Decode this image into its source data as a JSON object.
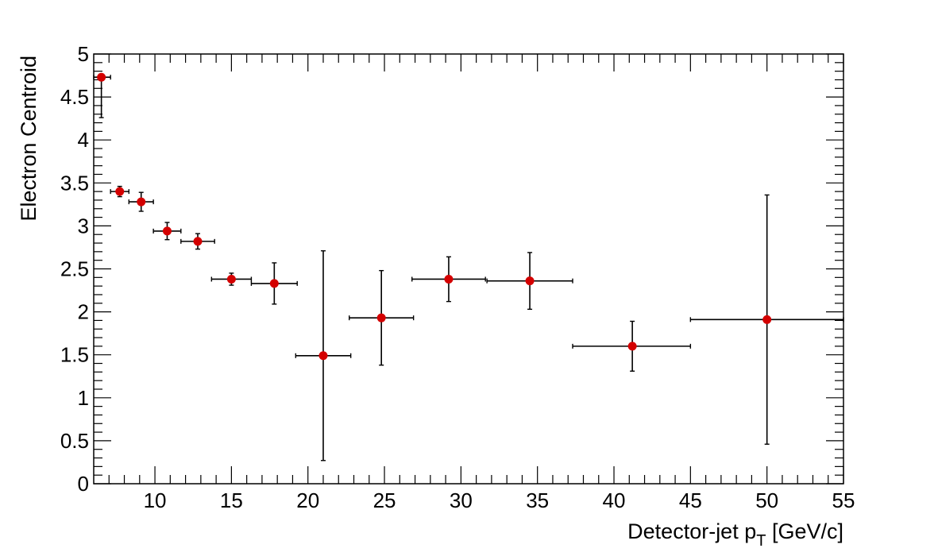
{
  "chart_data": {
    "type": "scatter",
    "title": "",
    "xlabel": "Detector-jet p",
    "xlabel_subscript": "T",
    "xlabel_suffix": " [GeV/c]",
    "ylabel": "Electron Centroid",
    "xlim": [
      6,
      55
    ],
    "ylim": [
      0,
      5
    ],
    "x_ticks": [
      10,
      15,
      20,
      25,
      30,
      35,
      40,
      45,
      50,
      55
    ],
    "y_ticks": [
      0,
      0.5,
      1,
      1.5,
      2,
      2.5,
      3,
      3.5,
      4,
      4.5,
      5
    ],
    "grid": false,
    "marker_color": "#d40000",
    "error_bar_color": "#000000",
    "points": [
      {
        "x": 6.5,
        "y": 4.73,
        "xerr_low": 0.5,
        "xerr_high": 0.6,
        "yerr_low": 0.47,
        "yerr_high": 0.0
      },
      {
        "x": 7.7,
        "y": 3.4,
        "xerr_low": 0.6,
        "xerr_high": 0.6,
        "yerr_low": 0.06,
        "yerr_high": 0.06
      },
      {
        "x": 9.1,
        "y": 3.28,
        "xerr_low": 0.8,
        "xerr_high": 0.8,
        "yerr_low": 0.11,
        "yerr_high": 0.11
      },
      {
        "x": 10.8,
        "y": 2.94,
        "xerr_low": 0.9,
        "xerr_high": 0.9,
        "yerr_low": 0.1,
        "yerr_high": 0.1
      },
      {
        "x": 12.8,
        "y": 2.82,
        "xerr_low": 1.1,
        "xerr_high": 1.1,
        "yerr_low": 0.09,
        "yerr_high": 0.09
      },
      {
        "x": 15.0,
        "y": 2.38,
        "xerr_low": 1.3,
        "xerr_high": 1.3,
        "yerr_low": 0.07,
        "yerr_high": 0.07
      },
      {
        "x": 17.8,
        "y": 2.33,
        "xerr_low": 1.5,
        "xerr_high": 1.5,
        "yerr_low": 0.24,
        "yerr_high": 0.24
      },
      {
        "x": 21.0,
        "y": 1.49,
        "xerr_low": 1.8,
        "xerr_high": 1.8,
        "yerr_low": 1.22,
        "yerr_high": 1.22
      },
      {
        "x": 24.8,
        "y": 1.93,
        "xerr_low": 2.1,
        "xerr_high": 2.1,
        "yerr_low": 0.55,
        "yerr_high": 0.55
      },
      {
        "x": 29.2,
        "y": 2.38,
        "xerr_low": 2.4,
        "xerr_high": 2.4,
        "yerr_low": 0.26,
        "yerr_high": 0.26
      },
      {
        "x": 34.5,
        "y": 2.36,
        "xerr_low": 2.8,
        "xerr_high": 2.8,
        "yerr_low": 0.33,
        "yerr_high": 0.33
      },
      {
        "x": 41.2,
        "y": 1.6,
        "xerr_low": 3.9,
        "xerr_high": 3.8,
        "yerr_low": 0.29,
        "yerr_high": 0.29
      },
      {
        "x": 50.0,
        "y": 1.91,
        "xerr_low": 5.0,
        "xerr_high": 5.0,
        "yerr_low": 1.45,
        "yerr_high": 1.45
      }
    ]
  }
}
